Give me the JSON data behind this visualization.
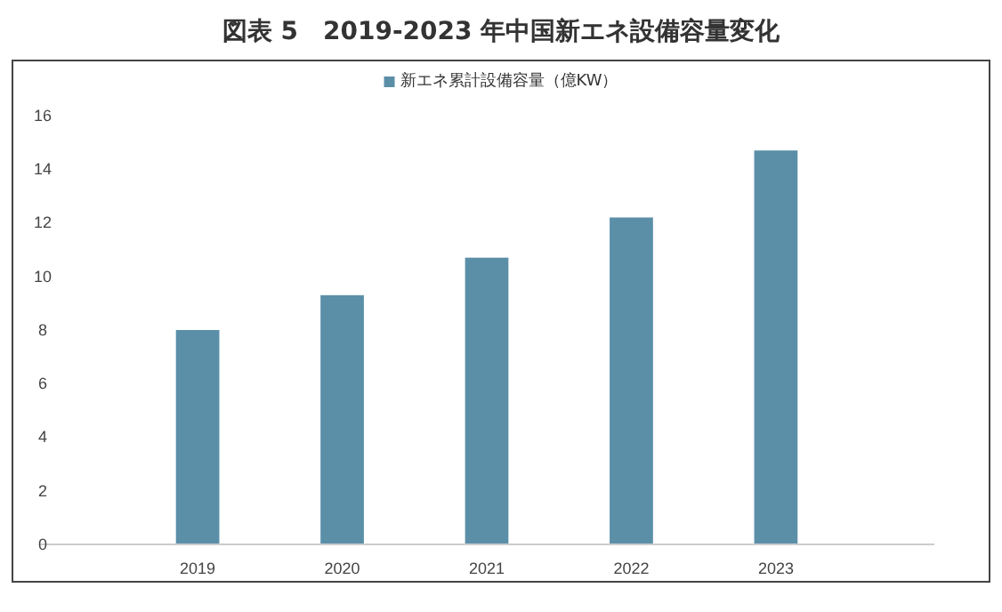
{
  "chart_data": {
    "type": "bar",
    "title": "図表 5　2019-2023 年中国新エネ設備容量変化",
    "categories": [
      "2019",
      "2020",
      "2021",
      "2022",
      "2023"
    ],
    "series": [
      {
        "name": "新エネ累計設備容量（億KW）",
        "color": "#5b8fa8",
        "values": [
          8.0,
          9.3,
          10.7,
          12.2,
          14.7
        ]
      }
    ],
    "ylim": [
      0,
      16
    ],
    "yticks": [
      0,
      2,
      4,
      6,
      8,
      10,
      12,
      14,
      16
    ],
    "grid": false,
    "legend": "top"
  }
}
